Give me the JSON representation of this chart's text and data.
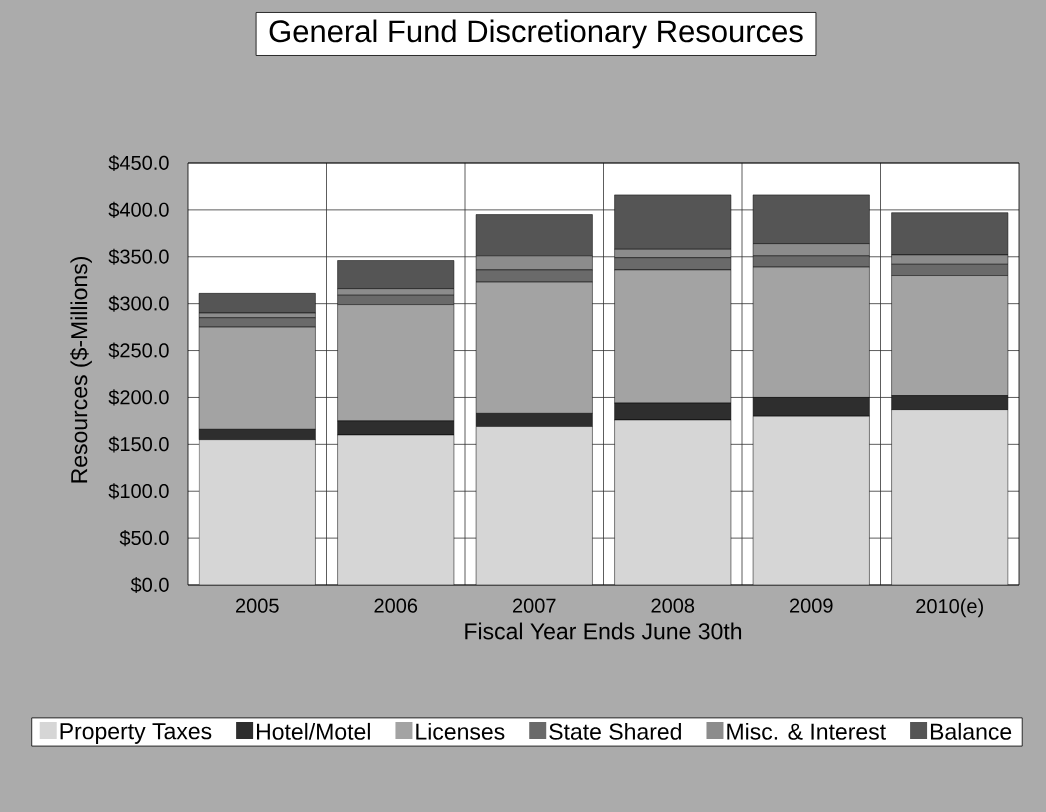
{
  "chart_data": {
    "type": "bar",
    "stacked": true,
    "title": "General Fund Discretionary Resources",
    "xlabel": "Fiscal Year Ends June 30th",
    "ylabel": "Resources ($-Millions)",
    "categories": [
      "2005",
      "2006",
      "2007",
      "2008",
      "2009",
      "2010(e)"
    ],
    "series": [
      {
        "name": "Property Taxes",
        "color": "#d6d6d6",
        "values": [
          155,
          160,
          169,
          176,
          180,
          187
        ]
      },
      {
        "name": "Hotel/Motel",
        "color": "#2e2e2e",
        "values": [
          11,
          15,
          14,
          18,
          20,
          15
        ]
      },
      {
        "name": "Licenses",
        "color": "#a3a3a3",
        "values": [
          109,
          124,
          140,
          142,
          139,
          128
        ]
      },
      {
        "name": "State Shared",
        "color": "#6a6a6a",
        "values": [
          10,
          10,
          13,
          13,
          12,
          12
        ]
      },
      {
        "name": "Misc. & Interest",
        "color": "#8c8c8c",
        "values": [
          5,
          7,
          15,
          9,
          13,
          10
        ]
      },
      {
        "name": "Balance",
        "color": "#555555",
        "values": [
          21,
          30,
          44,
          58,
          52,
          45
        ]
      }
    ],
    "ylim": [
      0,
      450
    ],
    "yticks": [
      {
        "value": 0,
        "label": "$0.0"
      },
      {
        "value": 50,
        "label": "$50.0"
      },
      {
        "value": 100,
        "label": "$100.0"
      },
      {
        "value": 150,
        "label": "$150.0"
      },
      {
        "value": 200,
        "label": "$200.0"
      },
      {
        "value": 250,
        "label": "$250.0"
      },
      {
        "value": 300,
        "label": "$300.0"
      },
      {
        "value": 350,
        "label": "$350.0"
      },
      {
        "value": 400,
        "label": "$400.0"
      },
      {
        "value": 450,
        "label": "$450.0"
      }
    ],
    "grid": true,
    "legend": "bottom"
  }
}
